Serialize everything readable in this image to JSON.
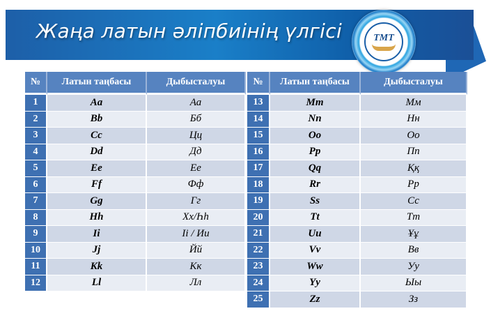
{
  "title": "Жаңа латын әліпбиінің үлгісі",
  "logo_text": "ТМТ",
  "headers": [
    "№",
    "Латын таңбасы",
    "Дыбысталуы"
  ],
  "left_rows": [
    {
      "n": "1",
      "latin": "Aa",
      "sound": "Аа"
    },
    {
      "n": "2",
      "latin": "Bb",
      "sound": "Бб"
    },
    {
      "n": "3",
      "latin": "Cc",
      "sound": "Цц"
    },
    {
      "n": "4",
      "latin": "Dd",
      "sound": "Дд"
    },
    {
      "n": "5",
      "latin": "Ee",
      "sound": "Ее"
    },
    {
      "n": "6",
      "latin": "Ff",
      "sound": "Фф"
    },
    {
      "n": "7",
      "latin": "Gg",
      "sound": "Гг"
    },
    {
      "n": "8",
      "latin": "Hh",
      "sound": "Хх/Һһ"
    },
    {
      "n": "9",
      "latin": "Ii",
      "sound": "Іі / Ии"
    },
    {
      "n": "10",
      "latin": "Jj",
      "sound": "Йй"
    },
    {
      "n": "11",
      "latin": "Kk",
      "sound": "Кк"
    },
    {
      "n": "12",
      "latin": "Ll",
      "sound": "Лл"
    }
  ],
  "right_rows": [
    {
      "n": "13",
      "latin": "Mm",
      "sound": "Мм"
    },
    {
      "n": "14",
      "latin": "Nn",
      "sound": "Нн"
    },
    {
      "n": "15",
      "latin": "Oo",
      "sound": "Оо"
    },
    {
      "n": "16",
      "latin": "Pp",
      "sound": "Пп"
    },
    {
      "n": "17",
      "latin": "Qq",
      "sound": "Ққ"
    },
    {
      "n": "18",
      "latin": "Rr",
      "sound": "Рр"
    },
    {
      "n": "19",
      "latin": "Ss",
      "sound": "Сс"
    },
    {
      "n": "20",
      "latin": "Tt",
      "sound": "Тт"
    },
    {
      "n": "21",
      "latin": "Uu",
      "sound": "Ұұ"
    },
    {
      "n": "22",
      "latin": "Vv",
      "sound": "Вв"
    },
    {
      "n": "23",
      "latin": "Ww",
      "sound": "Уу"
    },
    {
      "n": "24",
      "latin": "Yy",
      "sound": "Ыы"
    },
    {
      "n": "25",
      "latin": "Zz",
      "sound": "Зз"
    }
  ]
}
